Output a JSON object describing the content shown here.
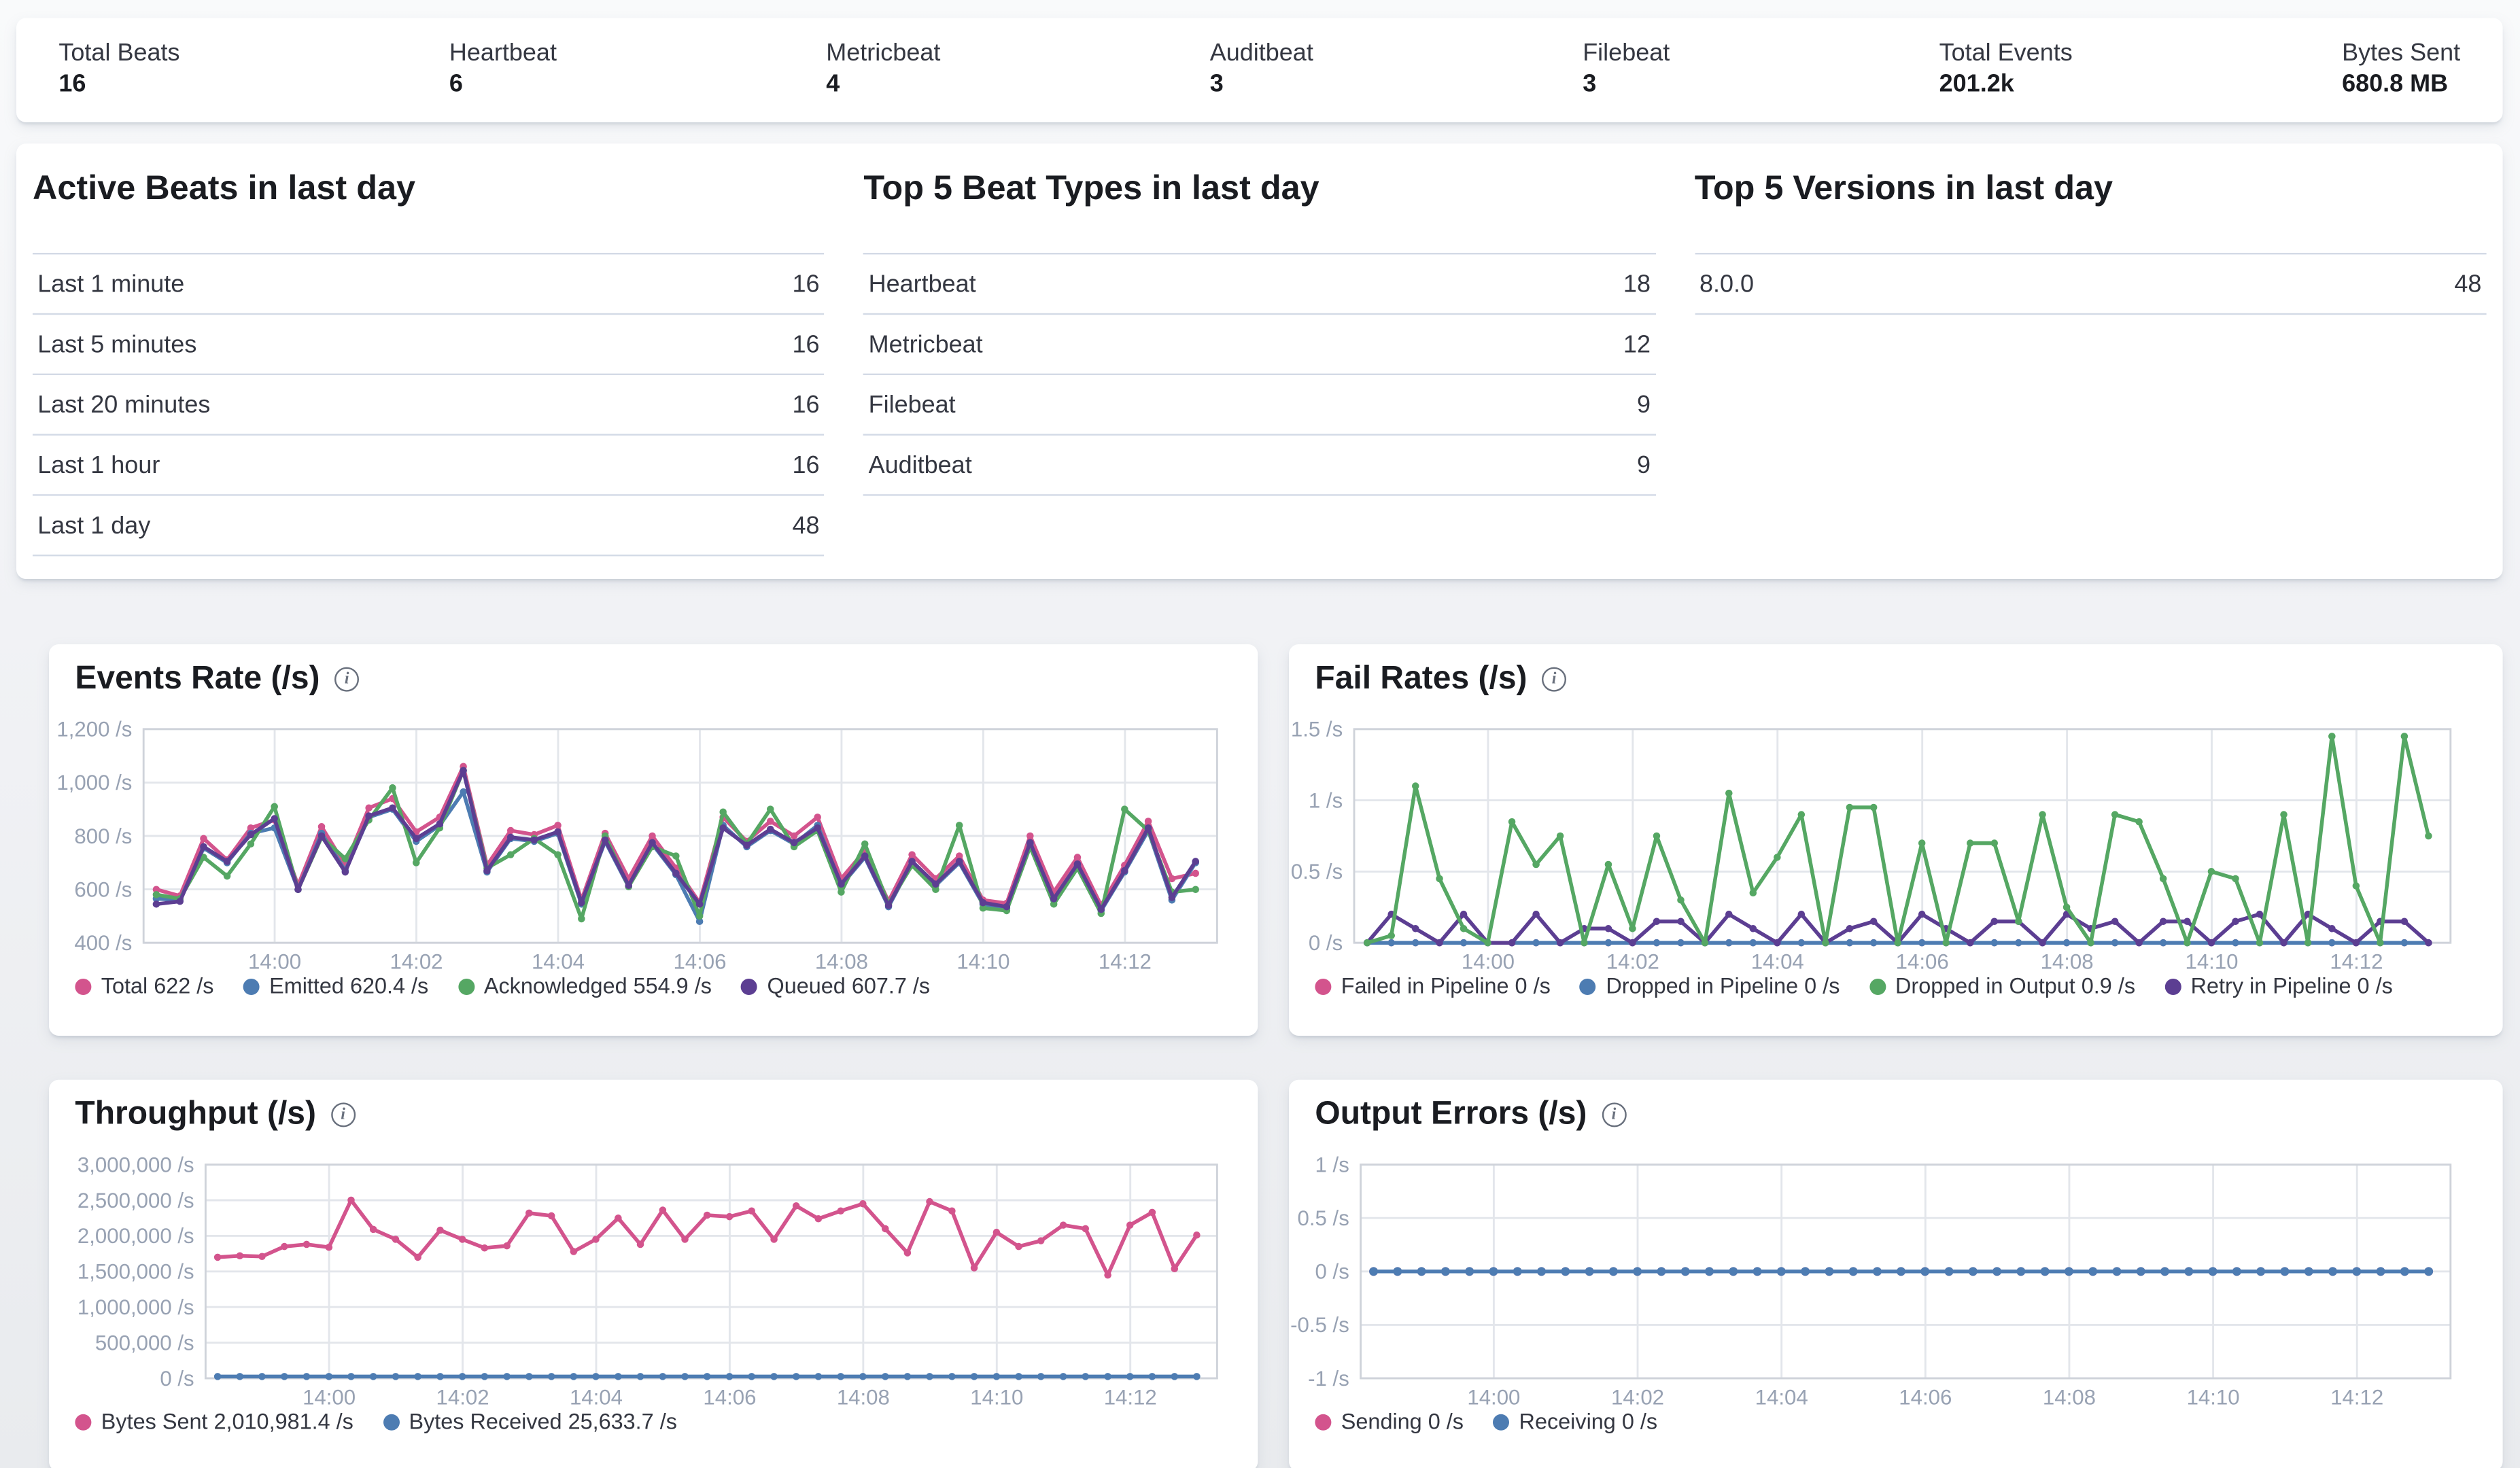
{
  "colors": {
    "pink": "#D3548D",
    "blue": "#4D7CB2",
    "green": "#55A763",
    "purple": "#5C3E92",
    "axis_text": "#98a2b3",
    "grid": "#e3e6eb",
    "plot_border": "#cfd3da",
    "divider": "#d3dae6",
    "title_text": "#1a1c21",
    "body_text": "#343741"
  },
  "stats_bar": [
    {
      "label": "Total Beats",
      "value": "16"
    },
    {
      "label": "Heartbeat",
      "value": "6"
    },
    {
      "label": "Metricbeat",
      "value": "4"
    },
    {
      "label": "Auditbeat",
      "value": "3"
    },
    {
      "label": "Filebeat",
      "value": "3"
    },
    {
      "label": "Total Events",
      "value": "201.2k"
    },
    {
      "label": "Bytes Sent",
      "value": "680.8 MB"
    }
  ],
  "list_panels": [
    {
      "name": "active-beats",
      "title": "Active Beats in last day",
      "rows": [
        {
          "label": "Last 1 minute",
          "value": "16"
        },
        {
          "label": "Last 5 minutes",
          "value": "16"
        },
        {
          "label": "Last 20 minutes",
          "value": "16"
        },
        {
          "label": "Last 1 hour",
          "value": "16"
        },
        {
          "label": "Last 1 day",
          "value": "48"
        }
      ]
    },
    {
      "name": "top-beat-types",
      "title": "Top 5 Beat Types in last day",
      "rows": [
        {
          "label": "Heartbeat",
          "value": "18"
        },
        {
          "label": "Metricbeat",
          "value": "12"
        },
        {
          "label": "Filebeat",
          "value": "9"
        },
        {
          "label": "Auditbeat",
          "value": "9"
        }
      ]
    },
    {
      "name": "top-versions",
      "title": "Top 5 Versions in last day",
      "rows": [
        {
          "label": "8.0.0",
          "value": "48"
        }
      ]
    }
  ],
  "charts": [
    {
      "name": "events-rate",
      "title": "Events Rate (/s)",
      "type": "line",
      "y_min": 400,
      "y_max": 1200,
      "y_ticks": [
        {
          "label": "1,200 /s",
          "value": 1200
        },
        {
          "label": "1,000 /s",
          "value": 1000
        },
        {
          "label": "800 /s",
          "value": 800
        },
        {
          "label": "600 /s",
          "value": 600
        },
        {
          "label": "400 /s",
          "value": 400
        }
      ],
      "x_range": {
        "min": -1.85,
        "max": 13.3
      },
      "x_ticks": [
        {
          "label": "14:00",
          "t": 0
        },
        {
          "label": "14:02",
          "t": 2
        },
        {
          "label": "14:04",
          "t": 4
        },
        {
          "label": "14:06",
          "t": 6
        },
        {
          "label": "14:08",
          "t": 8
        },
        {
          "label": "14:10",
          "t": 10
        },
        {
          "label": "14:12",
          "t": 12
        }
      ],
      "x_start": -1.67,
      "x_step": 0.3333,
      "series": [
        {
          "name": "total",
          "legend": "Total 622 /s",
          "color": "#D3548D",
          "values": [
            600,
            575,
            790,
            710,
            830,
            860,
            615,
            835,
            690,
            905,
            940,
            815,
            870,
            1060,
            690,
            820,
            805,
            840,
            560,
            810,
            640,
            800,
            680,
            550,
            870,
            780,
            855,
            800,
            870,
            640,
            745,
            555,
            730,
            640,
            725,
            560,
            548,
            800,
            590,
            720,
            540,
            690,
            855,
            640,
            660
          ]
        },
        {
          "name": "emitted",
          "legend": "Emitted 620.4 /s",
          "color": "#4D7CB2",
          "values": [
            565,
            560,
            755,
            700,
            810,
            830,
            600,
            810,
            670,
            870,
            900,
            780,
            840,
            965,
            665,
            790,
            780,
            810,
            545,
            780,
            610,
            770,
            655,
            480,
            840,
            760,
            820,
            770,
            840,
            615,
            720,
            535,
            700,
            615,
            700,
            545,
            530,
            770,
            560,
            690,
            520,
            665,
            820,
            560,
            700
          ]
        },
        {
          "name": "acknowledged",
          "legend": "Acknowledged 554.9 /s",
          "color": "#55A763",
          "values": [
            580,
            565,
            720,
            650,
            770,
            910,
            600,
            795,
            715,
            860,
            980,
            700,
            830,
            1045,
            680,
            730,
            790,
            730,
            490,
            800,
            610,
            760,
            725,
            500,
            890,
            770,
            900,
            760,
            820,
            590,
            770,
            545,
            690,
            600,
            840,
            530,
            520,
            760,
            545,
            680,
            510,
            900,
            820,
            590,
            600
          ]
        },
        {
          "name": "queued",
          "legend": "Queued 607.7 /s",
          "color": "#5C3E92",
          "values": [
            545,
            555,
            760,
            705,
            805,
            865,
            600,
            800,
            665,
            875,
            905,
            790,
            845,
            1045,
            670,
            795,
            785,
            815,
            550,
            785,
            615,
            775,
            660,
            545,
            830,
            765,
            825,
            775,
            830,
            620,
            725,
            540,
            705,
            620,
            705,
            550,
            535,
            775,
            565,
            695,
            525,
            670,
            830,
            570,
            705
          ]
        }
      ]
    },
    {
      "name": "fail-rates",
      "title": "Fail Rates (/s)",
      "type": "line",
      "y_min": 0,
      "y_max": 1.5,
      "y_ticks": [
        {
          "label": "1.5 /s",
          "value": 1.5
        },
        {
          "label": "1 /s",
          "value": 1
        },
        {
          "label": "0.5 /s",
          "value": 0.5
        },
        {
          "label": "0 /s",
          "value": 0
        }
      ],
      "x_range": {
        "min": -1.85,
        "max": 13.3
      },
      "x_ticks": [
        {
          "label": "14:00",
          "t": 0
        },
        {
          "label": "14:02",
          "t": 2
        },
        {
          "label": "14:04",
          "t": 4
        },
        {
          "label": "14:06",
          "t": 6
        },
        {
          "label": "14:08",
          "t": 8
        },
        {
          "label": "14:10",
          "t": 10
        },
        {
          "label": "14:12",
          "t": 12
        }
      ],
      "x_start": -1.67,
      "x_step": 0.3333,
      "series": [
        {
          "name": "failed-in-pipeline",
          "legend": "Failed in Pipeline 0 /s",
          "color": "#D3548D",
          "fill": 0,
          "count": 45
        },
        {
          "name": "dropped-in-pipeline",
          "legend": "Dropped in Pipeline 0 /s",
          "color": "#4D7CB2",
          "fill": 0,
          "count": 45
        },
        {
          "name": "dropped-in-output",
          "legend": "Dropped in Output 0.9 /s",
          "color": "#55A763",
          "values": [
            0,
            0.05,
            1.1,
            0.45,
            0.1,
            0,
            0.85,
            0.55,
            0.75,
            0,
            0.55,
            0.1,
            0.75,
            0.3,
            0,
            1.05,
            0.35,
            0.6,
            0.9,
            0,
            0.95,
            0.95,
            0,
            0.7,
            0,
            0.7,
            0.7,
            0.15,
            0.9,
            0.25,
            0,
            0.9,
            0.85,
            0.45,
            0,
            0.5,
            0.45,
            0,
            0.9,
            0,
            1.45,
            0.4,
            0,
            1.45,
            0.75
          ]
        },
        {
          "name": "retry-in-pipeline",
          "legend": "Retry in Pipeline 0 /s",
          "color": "#5C3E92",
          "values": [
            0,
            0.2,
            0.1,
            0,
            0.2,
            0,
            0,
            0.2,
            0,
            0.1,
            0.1,
            0,
            0.15,
            0.15,
            0,
            0.2,
            0.1,
            0,
            0.2,
            0,
            0.1,
            0.15,
            0,
            0.2,
            0.1,
            0,
            0.15,
            0.15,
            0,
            0.2,
            0.1,
            0.15,
            0,
            0.15,
            0.15,
            0,
            0.15,
            0.2,
            0,
            0.2,
            0.1,
            0,
            0.15,
            0.15,
            0
          ]
        }
      ]
    },
    {
      "name": "throughput",
      "title": "Throughput (/s)",
      "type": "line",
      "y_min": 0,
      "y_max": 3000000,
      "y_ticks": [
        {
          "label": "3,000,000 /s",
          "value": 3000000
        },
        {
          "label": "2,500,000 /s",
          "value": 2500000
        },
        {
          "label": "2,000,000 /s",
          "value": 2000000
        },
        {
          "label": "1,500,000 /s",
          "value": 1500000
        },
        {
          "label": "1,000,000 /s",
          "value": 1000000
        },
        {
          "label": "500,000 /s",
          "value": 500000
        },
        {
          "label": "0 /s",
          "value": 0
        }
      ],
      "x_range": {
        "min": -1.85,
        "max": 13.3
      },
      "x_ticks": [
        {
          "label": "14:00",
          "t": 0
        },
        {
          "label": "14:02",
          "t": 2
        },
        {
          "label": "14:04",
          "t": 4
        },
        {
          "label": "14:06",
          "t": 6
        },
        {
          "label": "14:08",
          "t": 8
        },
        {
          "label": "14:10",
          "t": 10
        },
        {
          "label": "14:12",
          "t": 12
        }
      ],
      "x_start": -1.67,
      "x_step": 0.3333,
      "series": [
        {
          "name": "bytes-sent",
          "legend": "Bytes Sent 2,010,981.4 /s",
          "color": "#D3548D",
          "values": [
            1700000,
            1720000,
            1710000,
            1850000,
            1880000,
            1840000,
            2500000,
            2090000,
            1950000,
            1700000,
            2080000,
            1950000,
            1830000,
            1860000,
            2320000,
            2280000,
            1780000,
            1950000,
            2250000,
            1880000,
            2360000,
            1950000,
            2290000,
            2270000,
            2350000,
            1950000,
            2420000,
            2240000,
            2350000,
            2450000,
            2100000,
            1760000,
            2480000,
            2350000,
            1550000,
            2050000,
            1850000,
            1930000,
            2150000,
            2100000,
            1450000,
            2150000,
            2330000,
            1540000,
            2010000
          ]
        },
        {
          "name": "bytes-received",
          "legend": "Bytes Received 25,633.7 /s",
          "color": "#4D7CB2",
          "fill": 25634,
          "count": 45
        }
      ]
    },
    {
      "name": "output-errors",
      "title": "Output Errors (/s)",
      "type": "line",
      "y_min": -1,
      "y_max": 1,
      "y_ticks": [
        {
          "label": "1 /s",
          "value": 1
        },
        {
          "label": "0.5 /s",
          "value": 0.5
        },
        {
          "label": "0 /s",
          "value": 0
        },
        {
          "label": "-0.5 /s",
          "value": -0.5
        },
        {
          "label": "-1 /s",
          "value": -1
        }
      ],
      "x_range": {
        "min": -1.85,
        "max": 13.3
      },
      "x_ticks": [
        {
          "label": "14:00",
          "t": 0
        },
        {
          "label": "14:02",
          "t": 2
        },
        {
          "label": "14:04",
          "t": 4
        },
        {
          "label": "14:06",
          "t": 6
        },
        {
          "label": "14:08",
          "t": 8
        },
        {
          "label": "14:10",
          "t": 10
        },
        {
          "label": "14:12",
          "t": 12
        }
      ],
      "x_start": -1.67,
      "x_step": 0.3333,
      "series": [
        {
          "name": "sending",
          "legend": "Sending 0 /s",
          "color": "#D3548D",
          "fill": 0,
          "count": 45
        },
        {
          "name": "receiving",
          "legend": "Receiving 0 /s",
          "color": "#4D7CB2",
          "fill": 0,
          "count": 45
        }
      ]
    }
  ]
}
